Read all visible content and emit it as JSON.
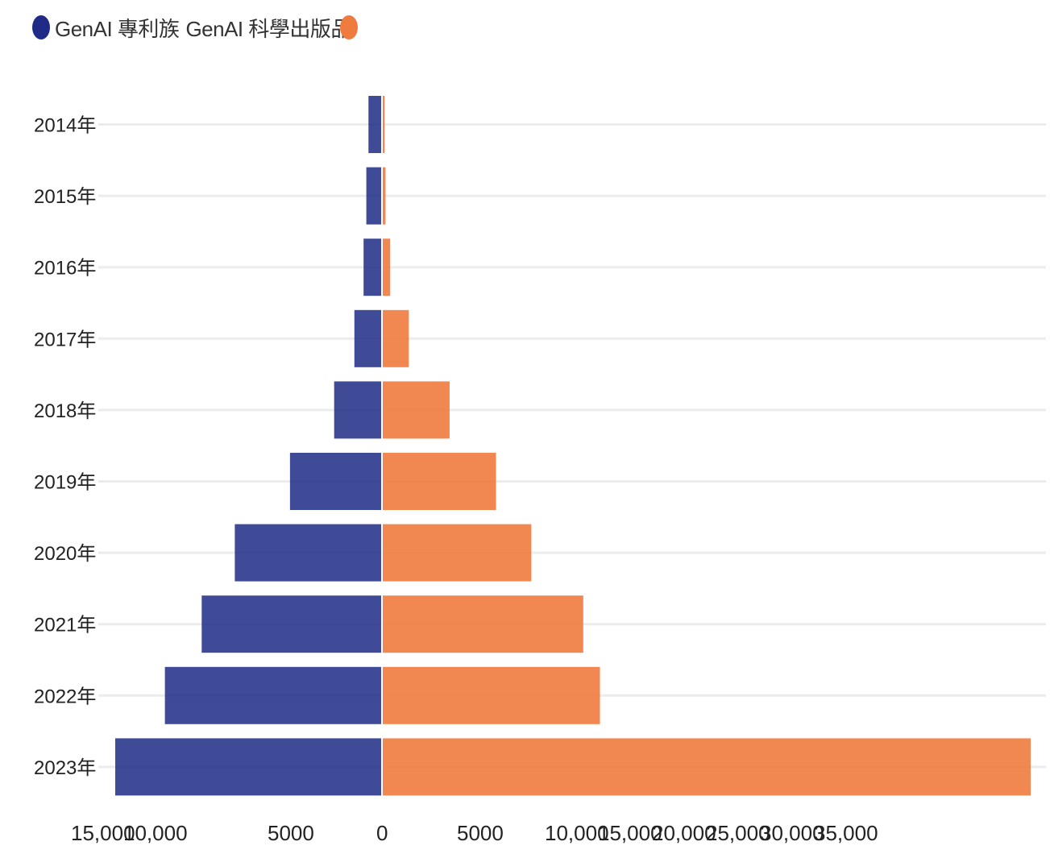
{
  "chart_data": {
    "type": "bar",
    "orientation": "horizontal-diverging",
    "categories": [
      "2014年",
      "2015年",
      "2016年",
      "2017年",
      "2018年",
      "2019年",
      "2020年",
      "2021年",
      "2022年",
      "2023年"
    ],
    "series": [
      {
        "name": "GenAI 專利族",
        "side": "left",
        "color": "#1f2b86",
        "values": [
          733,
          850,
          1000,
          1500,
          2600,
          5000,
          8000,
          9800,
          11800,
          14500
        ]
      },
      {
        "name": "GenAI 科學出版品",
        "side": "right",
        "color": "#f07b3f",
        "values": [
          100,
          150,
          400,
          1400,
          3600,
          6100,
          8000,
          10800,
          11700,
          34900
        ]
      }
    ],
    "x_tick_labels_left": [
      "15,000",
      "10,000",
      "5000",
      "0"
    ],
    "x_tick_labels_right": [
      "5000",
      "10,000",
      "15,000",
      "20,000",
      "25,000",
      "30,000",
      "35,000"
    ],
    "grid": true,
    "legend": "top-left"
  },
  "colors": {
    "patents": "#1f2b86",
    "publications": "#f07b3f",
    "grid": "#ececec"
  }
}
